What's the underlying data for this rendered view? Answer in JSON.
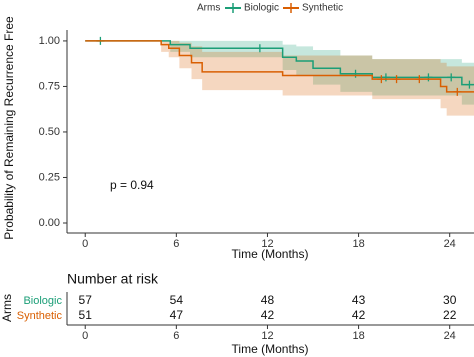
{
  "chart_data": {
    "type": "survival",
    "legend_title": "Arms",
    "legend": "top",
    "ylabel": "Probability of Remaining Recurrence Free",
    "xlabel": "Time (Months)",
    "annotation": "p = 0.94",
    "xlim": [
      -1.2,
      25.6
    ],
    "ylim": [
      -0.055,
      1.06
    ],
    "xticks": [
      0,
      6,
      12,
      18,
      24
    ],
    "yticks": [
      {
        "value": 0,
        "label": "0.00"
      },
      {
        "value": 0.25,
        "label": "0.25"
      },
      {
        "value": 0.5,
        "label": "0.50"
      },
      {
        "value": 0.75,
        "label": "0.75"
      },
      {
        "value": 1,
        "label": "1.00"
      }
    ],
    "series": [
      {
        "name": "Biologic",
        "color": "#1b9e77",
        "x": [
          0,
          5.6,
          6.9,
          13.0,
          13.9,
          15.0,
          16.8,
          18.9,
          24.8
        ],
        "values": [
          1,
          0.98,
          0.96,
          0.91,
          0.89,
          0.85,
          0.82,
          0.8,
          0.76
        ],
        "lower": [
          1,
          0.94,
          0.91,
          0.84,
          0.81,
          0.76,
          0.72,
          0.7,
          0.65
        ],
        "upper": [
          1,
          1,
          1,
          0.98,
          0.97,
          0.95,
          0.92,
          0.9,
          0.88
        ],
        "censored": [
          1.0,
          11.5,
          17.8,
          19.8,
          22.6,
          24.1,
          25.3
        ]
      },
      {
        "name": "Synthetic",
        "color": "#d95f02",
        "x": [
          0,
          5.0,
          5.5,
          6.2,
          7.0,
          7.7,
          13.0,
          18.9,
          23.4,
          23.8
        ],
        "values": [
          1,
          0.98,
          0.96,
          0.92,
          0.88,
          0.83,
          0.81,
          0.79,
          0.75,
          0.72
        ],
        "lower": [
          1,
          0.94,
          0.91,
          0.85,
          0.79,
          0.73,
          0.7,
          0.68,
          0.63,
          0.59
        ],
        "upper": [
          1,
          1,
          1,
          0.99,
          0.97,
          0.94,
          0.92,
          0.9,
          0.88,
          0.86
        ],
        "censored": [
          19.5,
          20.5,
          22.0,
          24.5
        ]
      }
    ],
    "risk_table": {
      "title": "Number at risk",
      "ylabel": "Arms",
      "rows": [
        [
          57,
          54,
          48,
          43,
          30
        ],
        [
          51,
          47,
          42,
          42,
          22
        ]
      ]
    }
  }
}
